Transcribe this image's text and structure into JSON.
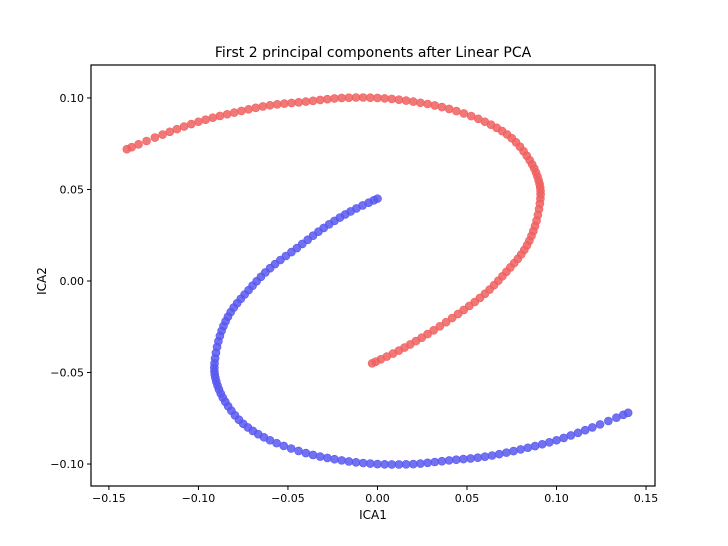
{
  "chart_data": {
    "type": "scatter",
    "title": "First 2 principal components after Linear PCA",
    "xlabel": "ICA1",
    "ylabel": "ICA2",
    "xlim": [
      -0.16,
      0.155
    ],
    "ylim": [
      -0.112,
      0.118
    ],
    "x_ticks": [
      -0.15,
      -0.1,
      -0.05,
      0.0,
      0.05,
      0.1,
      0.15
    ],
    "x_tick_labels": [
      "−0.15",
      "−0.10",
      "−0.05",
      "0.00",
      "0.05",
      "0.10",
      "0.15"
    ],
    "y_ticks": [
      -0.1,
      -0.05,
      0.0,
      0.05,
      0.1
    ],
    "y_tick_labels": [
      "−0.10",
      "−0.05",
      "0.00",
      "0.05",
      "0.10"
    ],
    "grid": false,
    "legend": "none",
    "series": [
      {
        "color": "#f06060",
        "shape": "upper crescent from (-0.14, 0.072) through (0.00, 0.10) and (0.09, 0.05) to (0.00, -0.045)",
        "points": [
          [
            -0.14,
            0.072
          ],
          [
            -0.12,
            0.08
          ],
          [
            -0.1,
            0.087
          ],
          [
            -0.08,
            0.092
          ],
          [
            -0.06,
            0.096
          ],
          [
            -0.04,
            0.098
          ],
          [
            -0.02,
            0.1
          ],
          [
            0.0,
            0.1
          ],
          [
            0.02,
            0.098
          ],
          [
            0.04,
            0.094
          ],
          [
            0.06,
            0.087
          ],
          [
            0.075,
            0.078
          ],
          [
            0.085,
            0.066
          ],
          [
            0.09,
            0.055
          ],
          [
            0.091,
            0.045
          ],
          [
            0.088,
            0.03
          ],
          [
            0.082,
            0.017
          ],
          [
            0.072,
            0.005
          ],
          [
            0.06,
            -0.007
          ],
          [
            0.045,
            -0.018
          ],
          [
            0.028,
            -0.029
          ],
          [
            0.012,
            -0.038
          ],
          [
            -0.003,
            -0.045
          ]
        ]
      },
      {
        "color": "#5858f0",
        "shape": "lower crescent from (0.00, 0.045) through (-0.09, -0.05) and (0.00, -0.10) to (0.14, -0.072)",
        "points": [
          [
            0.0,
            0.045
          ],
          [
            -0.015,
            0.038
          ],
          [
            -0.03,
            0.029
          ],
          [
            -0.045,
            0.018
          ],
          [
            -0.06,
            0.007
          ],
          [
            -0.072,
            -0.005
          ],
          [
            -0.082,
            -0.017
          ],
          [
            -0.088,
            -0.03
          ],
          [
            -0.091,
            -0.045
          ],
          [
            -0.09,
            -0.055
          ],
          [
            -0.085,
            -0.066
          ],
          [
            -0.075,
            -0.078
          ],
          [
            -0.06,
            -0.087
          ],
          [
            -0.04,
            -0.094
          ],
          [
            -0.02,
            -0.098
          ],
          [
            0.0,
            -0.1
          ],
          [
            0.02,
            -0.1
          ],
          [
            0.04,
            -0.098
          ],
          [
            0.06,
            -0.096
          ],
          [
            0.08,
            -0.092
          ],
          [
            0.1,
            -0.087
          ],
          [
            0.12,
            -0.08
          ],
          [
            0.14,
            -0.072
          ]
        ]
      }
    ]
  }
}
